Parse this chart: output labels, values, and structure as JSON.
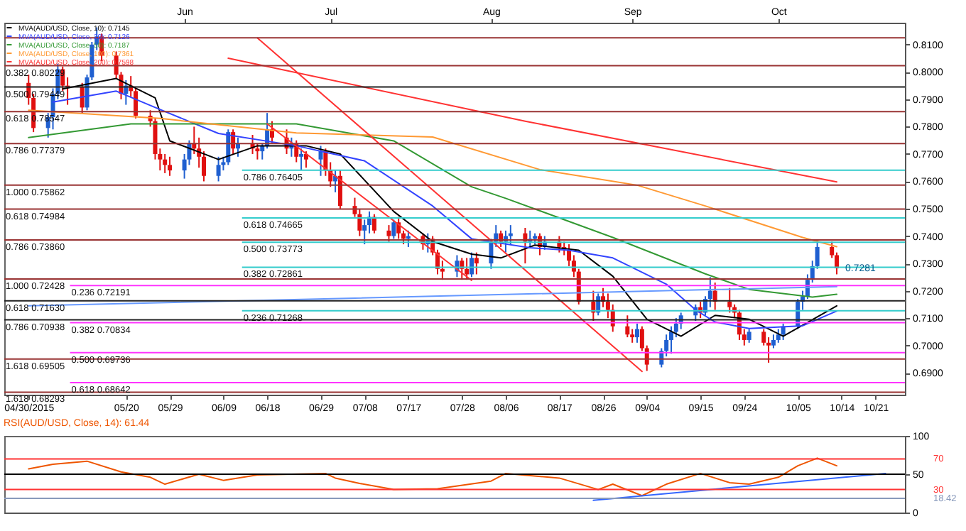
{
  "chart_data": [
    {
      "type": "candlestick",
      "legend": "top left",
      "grid": false,
      "x": [
        "2015-04-30",
        "2015-05-01",
        "2015-05-04",
        "2015-05-05",
        "2015-05-06",
        "2015-05-07",
        "2015-05-08",
        "2015-05-11",
        "2015-05-12",
        "2015-05-13",
        "2015-05-14",
        "2015-05-15",
        "2015-05-18",
        "2015-05-19",
        "2015-05-20",
        "2015-05-21",
        "2015-05-22",
        "2015-05-25",
        "2015-05-26",
        "2015-05-27",
        "2015-05-28",
        "2015-05-29",
        "2015-06-01",
        "2015-06-02",
        "2015-06-03",
        "2015-06-04",
        "2015-06-05",
        "2015-06-08",
        "2015-06-09",
        "2015-06-10",
        "2015-06-11",
        "2015-06-12",
        "2015-06-15",
        "2015-06-16",
        "2015-06-17",
        "2015-06-18",
        "2015-06-19",
        "2015-06-22",
        "2015-06-23",
        "2015-06-24",
        "2015-06-25",
        "2015-06-26",
        "2015-06-29",
        "2015-06-30",
        "2015-07-01",
        "2015-07-02",
        "2015-07-03",
        "2015-07-06",
        "2015-07-07",
        "2015-07-08",
        "2015-07-09",
        "2015-07-10",
        "2015-07-13",
        "2015-07-14",
        "2015-07-15",
        "2015-07-16",
        "2015-07-17",
        "2015-07-20",
        "2015-07-21",
        "2015-07-22",
        "2015-07-23",
        "2015-07-24",
        "2015-07-27",
        "2015-07-28",
        "2015-07-29",
        "2015-07-30",
        "2015-07-31",
        "2015-08-03",
        "2015-08-04",
        "2015-08-05",
        "2015-08-06",
        "2015-08-07",
        "2015-08-10",
        "2015-08-11",
        "2015-08-12",
        "2015-08-13",
        "2015-08-14",
        "2015-08-17",
        "2015-08-18",
        "2015-08-19",
        "2015-08-20",
        "2015-08-21",
        "2015-08-24",
        "2015-08-25",
        "2015-08-26",
        "2015-08-27",
        "2015-08-28",
        "2015-08-31",
        "2015-09-01",
        "2015-09-02",
        "2015-09-03",
        "2015-09-04",
        "2015-09-07",
        "2015-09-08",
        "2015-09-09",
        "2015-09-10",
        "2015-09-11",
        "2015-09-14",
        "2015-09-15",
        "2015-09-16",
        "2015-09-17",
        "2015-09-18",
        "2015-09-21",
        "2015-09-22",
        "2015-09-23",
        "2015-09-24",
        "2015-09-25",
        "2015-09-28",
        "2015-09-29",
        "2015-09-30",
        "2015-10-01",
        "2015-10-02",
        "2015-10-05",
        "2015-10-06",
        "2015-10-07",
        "2015-10-08",
        "2015-10-09",
        "2015-10-12",
        "2015-10-13"
      ],
      "ohlc": [
        [
          0.796,
          0.799,
          0.788,
          0.7905
        ],
        [
          0.7905,
          0.792,
          0.778,
          0.7795
        ],
        [
          0.7795,
          0.785,
          0.776,
          0.7835
        ],
        [
          0.7835,
          0.794,
          0.779,
          0.792
        ],
        [
          0.792,
          0.803,
          0.79,
          0.801
        ],
        [
          0.801,
          0.802,
          0.793,
          0.795
        ],
        [
          0.795,
          0.798,
          0.788,
          0.7945
        ],
        [
          0.7945,
          0.796,
          0.785,
          0.787
        ],
        [
          0.787,
          0.799,
          0.786,
          0.798
        ],
        [
          0.798,
          0.811,
          0.797,
          0.81
        ],
        [
          0.81,
          0.8163,
          0.808,
          0.813
        ],
        [
          0.813,
          0.814,
          0.804,
          0.806
        ],
        [
          0.806,
          0.8075,
          0.7975,
          0.799
        ],
        [
          0.799,
          0.8,
          0.79,
          0.792
        ],
        [
          0.792,
          0.797,
          0.788,
          0.795
        ],
        [
          0.795,
          0.7985,
          0.791,
          0.793
        ],
        [
          0.793,
          0.794,
          0.783,
          0.784
        ],
        [
          0.784,
          0.786,
          0.78,
          0.782
        ],
        [
          0.782,
          0.783,
          0.768,
          0.77
        ],
        [
          0.77,
          0.772,
          0.764,
          0.768
        ],
        [
          0.768,
          0.77,
          0.763,
          0.766
        ],
        [
          0.766,
          0.769,
          0.762,
          0.764
        ],
        [
          0.764,
          0.77,
          0.761,
          0.768
        ],
        [
          0.768,
          0.775,
          0.766,
          0.774
        ],
        [
          0.774,
          0.78,
          0.77,
          0.772
        ],
        [
          0.772,
          0.776,
          0.765,
          0.769
        ],
        [
          0.769,
          0.771,
          0.76,
          0.762
        ],
        [
          0.762,
          0.769,
          0.76,
          0.766
        ],
        [
          0.766,
          0.769,
          0.764,
          0.767
        ],
        [
          0.767,
          0.779,
          0.766,
          0.778
        ],
        [
          0.778,
          0.779,
          0.77,
          0.772
        ],
        [
          0.772,
          0.776,
          0.769,
          0.774
        ],
        [
          0.774,
          0.777,
          0.77,
          0.772
        ],
        [
          0.772,
          0.774,
          0.768,
          0.771
        ],
        [
          0.771,
          0.774,
          0.768,
          0.773
        ],
        [
          0.773,
          0.785,
          0.772,
          0.779
        ],
        [
          0.779,
          0.782,
          0.774,
          0.776
        ],
        [
          0.776,
          0.779,
          0.77,
          0.772
        ],
        [
          0.772,
          0.776,
          0.769,
          0.774
        ],
        [
          0.774,
          0.775,
          0.767,
          0.769
        ],
        [
          0.769,
          0.772,
          0.764,
          0.77
        ],
        [
          0.77,
          0.771,
          0.765,
          0.768
        ],
        [
          0.768,
          0.773,
          0.762,
          0.771
        ],
        [
          0.771,
          0.772,
          0.762,
          0.764
        ],
        [
          0.764,
          0.767,
          0.758,
          0.76
        ],
        [
          0.76,
          0.764,
          0.756,
          0.762
        ],
        [
          0.762,
          0.764,
          0.75,
          0.751
        ],
        [
          0.751,
          0.754,
          0.747,
          0.748
        ],
        [
          0.748,
          0.75,
          0.74,
          0.742
        ],
        [
          0.742,
          0.746,
          0.737,
          0.744
        ],
        [
          0.744,
          0.749,
          0.741,
          0.747
        ],
        [
          0.747,
          0.748,
          0.741,
          0.742
        ],
        [
          0.742,
          0.744,
          0.738,
          0.74
        ],
        [
          0.74,
          0.746,
          0.739,
          0.745
        ],
        [
          0.745,
          0.747,
          0.739,
          0.741
        ],
        [
          0.741,
          0.742,
          0.737,
          0.739
        ],
        [
          0.739,
          0.742,
          0.736,
          0.74
        ],
        [
          0.74,
          0.741,
          0.735,
          0.737
        ],
        [
          0.737,
          0.741,
          0.734,
          0.739
        ],
        [
          0.739,
          0.74,
          0.733,
          0.734
        ],
        [
          0.734,
          0.735,
          0.726,
          0.728
        ],
        [
          0.728,
          0.731,
          0.724,
          0.727
        ],
        [
          0.727,
          0.733,
          0.725,
          0.731
        ],
        [
          0.731,
          0.732,
          0.724,
          0.728
        ],
        [
          0.728,
          0.732,
          0.724,
          0.726
        ],
        [
          0.726,
          0.734,
          0.725,
          0.732
        ],
        [
          0.732,
          0.734,
          0.726,
          0.73
        ],
        [
          0.73,
          0.739,
          0.728,
          0.738
        ],
        [
          0.738,
          0.744,
          0.736,
          0.741
        ],
        [
          0.741,
          0.742,
          0.736,
          0.738
        ],
        [
          0.738,
          0.742,
          0.734,
          0.74
        ],
        [
          0.74,
          0.744,
          0.737,
          0.741
        ],
        [
          0.741,
          0.743,
          0.73,
          0.738
        ],
        [
          0.738,
          0.742,
          0.736,
          0.739
        ],
        [
          0.739,
          0.741,
          0.737,
          0.74
        ],
        [
          0.74,
          0.741,
          0.733,
          0.736
        ],
        [
          0.736,
          0.74,
          0.735,
          0.738
        ],
        [
          0.738,
          0.74,
          0.734,
          0.736
        ],
        [
          0.736,
          0.738,
          0.733,
          0.735
        ],
        [
          0.735,
          0.737,
          0.729,
          0.731
        ],
        [
          0.731,
          0.733,
          0.725,
          0.727
        ],
        [
          0.727,
          0.728,
          0.715,
          0.716
        ],
        [
          0.716,
          0.72,
          0.709,
          0.712
        ],
        [
          0.712,
          0.719,
          0.711,
          0.718
        ],
        [
          0.718,
          0.721,
          0.714,
          0.716
        ],
        [
          0.716,
          0.719,
          0.71,
          0.713
        ],
        [
          0.713,
          0.715,
          0.705,
          0.707
        ],
        [
          0.707,
          0.711,
          0.703,
          0.704
        ],
        [
          0.704,
          0.706,
          0.701,
          0.703
        ],
        [
          0.703,
          0.708,
          0.701,
          0.706
        ],
        [
          0.706,
          0.707,
          0.698,
          0.699
        ],
        [
          0.699,
          0.7,
          0.6907,
          0.693
        ],
        [
          0.693,
          0.699,
          0.692,
          0.698
        ],
        [
          0.698,
          0.704,
          0.696,
          0.702
        ],
        [
          0.702,
          0.707,
          0.697,
          0.705
        ],
        [
          0.705,
          0.71,
          0.703,
          0.708
        ],
        [
          0.708,
          0.712,
          0.706,
          0.711
        ],
        [
          0.711,
          0.715,
          0.709,
          0.714
        ],
        [
          0.714,
          0.716,
          0.71,
          0.712
        ],
        [
          0.712,
          0.718,
          0.711,
          0.717
        ],
        [
          0.717,
          0.725,
          0.714,
          0.72
        ],
        [
          0.72,
          0.723,
          0.713,
          0.716
        ],
        [
          0.716,
          0.721,
          0.712,
          0.714
        ],
        [
          0.714,
          0.715,
          0.71,
          0.712
        ],
        [
          0.712,
          0.713,
          0.702,
          0.704
        ],
        [
          0.704,
          0.706,
          0.7,
          0.702
        ],
        [
          0.702,
          0.706,
          0.701,
          0.705
        ],
        [
          0.705,
          0.706,
          0.7,
          0.701
        ],
        [
          0.701,
          0.703,
          0.6937,
          0.7
        ],
        [
          0.7,
          0.704,
          0.699,
          0.702
        ],
        [
          0.702,
          0.706,
          0.701,
          0.704
        ],
        [
          0.704,
          0.708,
          0.702,
          0.707
        ],
        [
          0.707,
          0.717,
          0.706,
          0.716
        ],
        [
          0.716,
          0.72,
          0.713,
          0.718
        ],
        [
          0.718,
          0.726,
          0.717,
          0.724
        ],
        [
          0.724,
          0.731,
          0.723,
          0.729
        ],
        [
          0.729,
          0.7382,
          0.728,
          0.736
        ],
        [
          0.736,
          0.738,
          0.732,
          0.733
        ],
        [
          0.733,
          0.734,
          0.726,
          0.7282
        ]
      ],
      "colors": [
        "#e01010",
        "#e01010",
        "#1f5fd0",
        "#1f5fd0",
        "#1f5fd0",
        "#e01010",
        "#e01010",
        "#e01010",
        "#1f5fd0",
        "#1f5fd0",
        "#1f5fd0",
        "#e01010",
        "#e01010",
        "#e01010",
        "#1f5fd0",
        "#e01010",
        "#e01010",
        "#e01010",
        "#e01010",
        "#e01010",
        "#e01010",
        "#e01010",
        "#1f5fd0",
        "#1f5fd0",
        "#e01010",
        "#e01010",
        "#e01010",
        "#1f5fd0",
        "#1f5fd0",
        "#1f5fd0",
        "#e01010",
        "#1f5fd0",
        "#e01010",
        "#e01010",
        "#1f5fd0",
        "#1f5fd0",
        "#e01010",
        "#e01010",
        "#1f5fd0",
        "#e01010",
        "#1f5fd0",
        "#e01010",
        "#1f5fd0",
        "#e01010",
        "#e01010",
        "#1f5fd0",
        "#e01010",
        "#e01010",
        "#e01010",
        "#1f5fd0",
        "#1f5fd0",
        "#e01010",
        "#e01010",
        "#1f5fd0",
        "#e01010",
        "#e01010",
        "#1f5fd0",
        "#e01010",
        "#1f5fd0",
        "#e01010",
        "#e01010",
        "#e01010",
        "#1f5fd0",
        "#e01010",
        "#e01010",
        "#1f5fd0",
        "#e01010",
        "#1f5fd0",
        "#1f5fd0",
        "#e01010",
        "#1f5fd0",
        "#1f5fd0",
        "#e01010",
        "#1f5fd0",
        "#1f5fd0",
        "#e01010",
        "#1f5fd0",
        "#e01010",
        "#e01010",
        "#e01010",
        "#e01010",
        "#e01010",
        "#e01010",
        "#1f5fd0",
        "#e01010",
        "#e01010",
        "#e01010",
        "#e01010",
        "#e01010",
        "#1f5fd0",
        "#e01010",
        "#e01010",
        "#1f5fd0",
        "#1f5fd0",
        "#1f5fd0",
        "#1f5fd0",
        "#1f5fd0",
        "#1f5fd0",
        "#e01010",
        "#1f5fd0",
        "#1f5fd0",
        "#e01010",
        "#e01010",
        "#e01010",
        "#e01010",
        "#e01010",
        "#1f5fd0",
        "#e01010",
        "#e01010",
        "#1f5fd0",
        "#1f5fd0",
        "#1f5fd0",
        "#1f5fd0",
        "#1f5fd0",
        "#1f5fd0",
        "#1f5fd0",
        "#1f5fd0",
        "#e01010",
        "#e01010"
      ],
      "series": [
        {
          "type": "line",
          "name": "MVA(AUD/USD, Close, 10): 0.7145",
          "color": "#000000",
          "x": [
            "2015-05-07",
            "2015-05-18",
            "2015-05-26",
            "2015-05-29",
            "2015-06-08",
            "2015-06-16",
            "2015-06-26",
            "2015-07-03",
            "2015-07-14",
            "2015-07-22",
            "2015-07-30",
            "2015-08-05",
            "2015-08-12",
            "2015-08-21",
            "2015-08-28",
            "2015-09-04",
            "2015-09-11",
            "2015-09-18",
            "2015-09-25",
            "2015-10-02",
            "2015-10-13"
          ],
          "values": [
            0.7938,
            0.7976,
            0.7905,
            0.7748,
            0.768,
            0.773,
            0.773,
            0.77,
            0.749,
            0.738,
            0.7334,
            0.732,
            0.7367,
            0.7348,
            0.7253,
            0.7096,
            0.7034,
            0.711,
            0.7096,
            0.7034,
            0.7145
          ]
        },
        {
          "type": "line",
          "name": "MVA(AUD/USD, Close, 20): 0.7126",
          "color": "#3344ff",
          "x": [
            "2015-05-05",
            "2015-05-18",
            "2015-05-26",
            "2015-06-08",
            "2015-06-24",
            "2015-07-08",
            "2015-07-22",
            "2015-07-30",
            "2015-08-11",
            "2015-08-19",
            "2015-08-28",
            "2015-09-08",
            "2015-09-14",
            "2015-09-18",
            "2015-09-25",
            "2015-10-06",
            "2015-10-13"
          ],
          "values": [
            0.789,
            0.793,
            0.787,
            0.7775,
            0.773,
            0.7675,
            0.751,
            0.739,
            0.7357,
            0.7348,
            0.732,
            0.7224,
            0.713,
            0.7086,
            0.7062,
            0.7072,
            0.7126
          ]
        },
        {
          "type": "line",
          "name": "MVA(AUD/USD, Close, 50): 0.7187",
          "color": "#339933",
          "x": [
            "2015-04-30",
            "2015-05-21",
            "2015-06-24",
            "2015-07-14",
            "2015-07-30",
            "2015-08-06",
            "2015-08-28",
            "2015-09-16",
            "2015-09-25",
            "2015-10-08",
            "2015-10-13"
          ],
          "values": [
            0.776,
            0.781,
            0.781,
            0.7748,
            0.758,
            0.7538,
            0.7395,
            0.7262,
            0.7205,
            0.7177,
            0.7187
          ]
        },
        {
          "type": "line",
          "name": "MVA(AUD/USD, Close, 100): 0.7361",
          "color": "#ff9933",
          "x": [
            "2015-04-30",
            "2015-05-27",
            "2015-06-24",
            "2015-07-22",
            "2015-08-13",
            "2015-09-02",
            "2015-09-16",
            "2015-10-06",
            "2015-10-13"
          ],
          "values": [
            0.786,
            0.783,
            0.7777,
            0.7762,
            0.7643,
            0.7586,
            0.751,
            0.7395,
            0.7361
          ]
        },
        {
          "type": "line",
          "name": "MVA(AUD/USD, Close, 200): 0.7598",
          "color": "#ff3333",
          "x": [
            "2015-06-10",
            "2015-08-10",
            "2015-10-13"
          ],
          "values": [
            0.805,
            0.782,
            0.7598
          ]
        },
        {
          "type": "line",
          "color": "#ff3333",
          "x": [
            "2015-06-16",
            "2015-09-03"
          ],
          "values": [
            0.8124,
            0.6905
          ]
        },
        {
          "type": "line",
          "color": "#ff3333",
          "x": [
            "2015-06-18",
            "2015-07-30"
          ],
          "values": [
            0.781,
            0.7238
          ]
        },
        {
          "type": "line",
          "color": "#6699ff",
          "x": [
            "2015-04-30",
            "2015-07-22",
            "2015-10-13"
          ],
          "values": [
            0.7145,
            0.718,
            0.7215
          ]
        }
      ],
      "xlim": [
        "2015-04-25",
        "2015-10-27"
      ],
      "xticks": [
        {
          "value": "2015-04-30",
          "label": "04/30/2015"
        },
        {
          "value": "2015-05-20",
          "label": "05/20"
        },
        {
          "value": "2015-05-29",
          "label": "05/29"
        },
        {
          "value": "2015-06-09",
          "label": "06/09"
        },
        {
          "value": "2015-06-18",
          "label": "06/18"
        },
        {
          "value": "2015-06-29",
          "label": "06/29"
        },
        {
          "value": "2015-07-08",
          "label": "07/08"
        },
        {
          "value": "2015-07-17",
          "label": "07/17"
        },
        {
          "value": "2015-07-28",
          "label": "07/28"
        },
        {
          "value": "2015-08-06",
          "label": "08/06"
        },
        {
          "value": "2015-08-17",
          "label": "08/17"
        },
        {
          "value": "2015-08-26",
          "label": "08/26"
        },
        {
          "value": "2015-09-04",
          "label": "09/04"
        },
        {
          "value": "2015-09-15",
          "label": "09/15"
        },
        {
          "value": "2015-09-24",
          "label": "09/24"
        },
        {
          "value": "2015-10-05",
          "label": "10/05"
        },
        {
          "value": "2015-10-14",
          "label": "10/14"
        },
        {
          "value": "2015-10-21",
          "label": "10/21"
        }
      ],
      "x2lim": [
        "2015-04-25",
        "2015-10-27"
      ],
      "x2ticks": [
        {
          "value": "2015-06-01",
          "label": "Jun"
        },
        {
          "value": "2015-07-01",
          "label": "Jul"
        },
        {
          "value": "2015-08-03",
          "label": "Aug"
        },
        {
          "value": "2015-09-01",
          "label": "Sep"
        },
        {
          "value": "2015-10-01",
          "label": "Oct"
        }
      ],
      "ylim": [
        0.682,
        0.818
      ],
      "yticks": [
        {
          "value": 0.69,
          "label": "0.6900"
        },
        {
          "value": 0.7,
          "label": "0.7000"
        },
        {
          "value": 0.71,
          "label": "0.7100"
        },
        {
          "value": 0.72,
          "label": "0.7200"
        },
        {
          "value": 0.73,
          "label": "0.7300"
        },
        {
          "value": 0.74,
          "label": "0.7400"
        },
        {
          "value": 0.75,
          "label": "0.7500"
        },
        {
          "value": 0.76,
          "label": "0.7600"
        },
        {
          "value": 0.77,
          "label": "0.7700"
        },
        {
          "value": 0.78,
          "label": "0.7800"
        },
        {
          "value": 0.79,
          "label": "0.7900"
        },
        {
          "value": 0.8,
          "label": "0.8000"
        },
        {
          "value": 0.81,
          "label": "0.8100"
        }
      ],
      "ref_lines": [
        {
          "axis": "y",
          "value": 0.8125,
          "label": null,
          "color": "#993333"
        },
        {
          "axis": "y",
          "value": 0.80229,
          "label": "0.382 0.80229",
          "color": "#993333"
        },
        {
          "axis": "y",
          "value": 0.78547,
          "label": "0.618 0.78547",
          "color": "#993333"
        },
        {
          "axis": "y",
          "value": 0.77379,
          "label": "0.786 0.77379",
          "color": "#993333"
        },
        {
          "axis": "y",
          "value": 0.75862,
          "label": "1.000 0.75862",
          "color": "#993333"
        },
        {
          "axis": "y",
          "value": 0.74984,
          "label": "0.618 0.74984",
          "color": "#993333"
        },
        {
          "axis": "y",
          "value": 0.7386,
          "label": "0.786 0.73860",
          "color": "#993333"
        },
        {
          "axis": "y",
          "value": 0.72428,
          "label": "1.000 0.72428",
          "color": "#993333"
        },
        {
          "axis": "y",
          "value": 0.69505,
          "label": "1.618 0.69505",
          "color": "#993333"
        },
        {
          "axis": "y",
          "value": 0.68293,
          "label": "1.618 0.68293",
          "color": "#993333"
        },
        {
          "axis": "y",
          "value": 0.79449,
          "label": "0.500 0.79449",
          "color": "#222222"
        },
        {
          "axis": "y",
          "value": 0.7163,
          "label": "0.618 0.71630",
          "color": "#222222"
        },
        {
          "axis": "y",
          "value": 0.70938,
          "label": "0.786 0.70938",
          "color": "#222222"
        },
        {
          "axis": "y",
          "value": 0.76405,
          "label": "0.786 0.76405",
          "color": "#33cccc"
        },
        {
          "axis": "y",
          "value": 0.74665,
          "label": "0.618 0.74665",
          "color": "#33cccc"
        },
        {
          "axis": "y",
          "value": 0.73773,
          "label": "0.500 0.73773",
          "color": "#33cccc"
        },
        {
          "axis": "y",
          "value": 0.72861,
          "label": "0.382 0.72861",
          "color": "#33cccc"
        },
        {
          "axis": "y",
          "value": 0.71268,
          "label": "0.236 0.71268",
          "color": "#33cccc"
        },
        {
          "axis": "y",
          "value": 0.72191,
          "label": "0.236 0.72191",
          "color": "#ff33ff"
        },
        {
          "axis": "y",
          "value": 0.70834,
          "label": "0.382 0.70834",
          "color": "#ff33ff"
        },
        {
          "axis": "y",
          "value": 0.69736,
          "label": "0.500 0.69736",
          "color": "#ff33ff"
        },
        {
          "axis": "y",
          "value": 0.68642,
          "label": "0.618 0.68642",
          "color": "#ff33ff"
        }
      ],
      "annotations": [
        {
          "text": "0.7281",
          "x": "2015-10-13",
          "y": 0.7282
        }
      ]
    },
    {
      "type": "line",
      "title": "RSI(AUD/USD, Close, 14): 61.44",
      "grid": false,
      "tick_labels": "y",
      "series": [
        {
          "color": "#ee5500",
          "x": [
            "2015-04-30",
            "2015-05-05",
            "2015-05-12",
            "2015-05-19",
            "2015-05-25",
            "2015-05-28",
            "2015-06-04",
            "2015-06-09",
            "2015-06-16",
            "2015-06-30",
            "2015-07-02",
            "2015-07-07",
            "2015-07-14",
            "2015-07-23",
            "2015-08-03",
            "2015-08-06",
            "2015-08-17",
            "2015-08-25",
            "2015-08-28",
            "2015-09-03",
            "2015-09-08",
            "2015-09-15",
            "2015-09-21",
            "2015-09-25",
            "2015-10-01",
            "2015-10-05",
            "2015-10-09",
            "2015-10-13"
          ],
          "values": [
            57,
            63,
            67,
            53,
            46,
            37,
            50,
            42,
            49,
            51,
            45,
            38,
            30,
            31,
            41,
            51,
            45,
            30,
            37,
            22,
            37,
            51,
            39,
            37,
            46,
            61,
            71,
            61
          ]
        },
        {
          "color": "#3366ff",
          "x": [
            "2015-08-24",
            "2015-10-23"
          ],
          "values": [
            16,
            51
          ]
        }
      ],
      "xlim": [
        "2015-04-25",
        "2015-10-27"
      ],
      "ylim": [
        0,
        100
      ],
      "yticks": [
        0,
        50,
        100
      ],
      "ref_lines": [
        {
          "axis": "y",
          "value": 70,
          "label": "70",
          "color": "#ff3333"
        },
        {
          "axis": "y",
          "value": 50,
          "label": null,
          "color": "#000000"
        },
        {
          "axis": "y",
          "value": 30,
          "label": "30",
          "color": "#ff3333"
        },
        {
          "axis": "y",
          "value": 18.42,
          "label": "18.42",
          "color": "#8899bb"
        }
      ]
    }
  ]
}
